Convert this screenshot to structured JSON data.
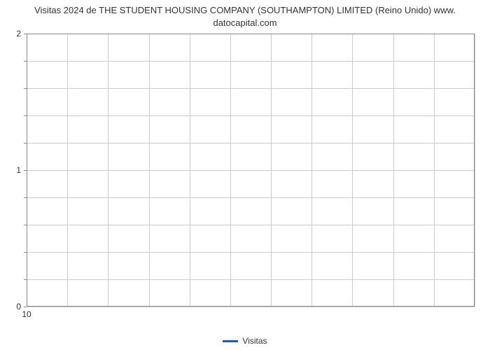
{
  "chart": {
    "type": "line",
    "title_line1": "Visitas 2024 de THE STUDENT HOUSING COMPANY (SOUTHAMPTON) LIMITED (Reino Unido) www.",
    "title_line2": "datocapital.com",
    "title_fontsize": 13,
    "title_color": "#333333",
    "background_color": "#ffffff",
    "grid_color": "#cccccc",
    "axis_color": "#888888",
    "ylim": [
      0,
      2
    ],
    "ytick_major": [
      0,
      1,
      2
    ],
    "ytick_minor_step": 0.2,
    "xlim": [
      10,
      21
    ],
    "xtick_major": [
      10
    ],
    "x_grid_count": 11,
    "y_grid_count": 10,
    "tick_fontsize": 12,
    "tick_color": "#333333",
    "series": [
      {
        "name": "Visitas",
        "color": "#2158b0",
        "line_width": 3,
        "data": []
      }
    ],
    "legend": {
      "position": "bottom-center",
      "items": [
        {
          "label": "Visitas",
          "color": "#2158b0"
        }
      ],
      "fontsize": 12
    }
  }
}
